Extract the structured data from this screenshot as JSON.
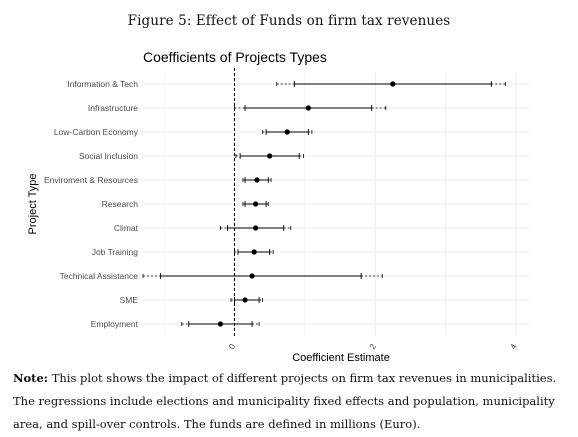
{
  "figure_caption": "Figure 5: Effect of Funds on firm tax revenues",
  "note": {
    "label": "Note:",
    "text": "This plot shows the impact of different projects on firm tax revenues in municipalities. The regressions include elections and municipality fixed effects and population, municipality area, and spill-over controls. The funds are defined in millions (Euro)."
  },
  "colors": {
    "point": "#000000",
    "ci": "#000000",
    "grid": "#ebebeb",
    "zero_line": "#000000",
    "text": "#4d4d4d"
  },
  "chart_data": {
    "type": "coefficient-plot",
    "title": "Coefficients of Projects Types",
    "xlabel": "Coefficient Estimate",
    "ylabel": "Project Type",
    "xlim": [
      -1.3,
      4.2
    ],
    "xticks": [
      0,
      2,
      4
    ],
    "xtick_labels": [
      "0",
      "2",
      "4"
    ],
    "grid": true,
    "reference_line": 0,
    "categories": [
      "Information & Tech",
      "Infrastructure",
      "Low-Carbon Economy",
      "Social Inclusion",
      "Enviroment & Resources",
      "Research",
      "Climat",
      "Job Training",
      "Technical Assistance",
      "SME",
      "Employment"
    ],
    "estimates": [
      2.25,
      1.05,
      0.75,
      0.5,
      0.32,
      0.3,
      0.3,
      0.28,
      0.25,
      0.15,
      -0.2
    ],
    "ci_inner": [
      [
        0.85,
        3.65
      ],
      [
        0.15,
        1.95
      ],
      [
        0.45,
        1.05
      ],
      [
        0.08,
        0.92
      ],
      [
        0.15,
        0.48
      ],
      [
        0.15,
        0.45
      ],
      [
        -0.1,
        0.7
      ],
      [
        0.05,
        0.5
      ],
      [
        -1.05,
        1.8
      ],
      [
        0.0,
        0.35
      ],
      [
        -0.65,
        0.25
      ]
    ],
    "ci_outer": [
      [
        0.6,
        3.85
      ],
      [
        0.0,
        2.15
      ],
      [
        0.4,
        1.1
      ],
      [
        0.02,
        0.98
      ],
      [
        0.12,
        0.52
      ],
      [
        0.12,
        0.48
      ],
      [
        -0.2,
        0.8
      ],
      [
        0.0,
        0.55
      ],
      [
        -1.3,
        2.1
      ],
      [
        -0.05,
        0.4
      ],
      [
        -0.75,
        0.35
      ]
    ]
  }
}
